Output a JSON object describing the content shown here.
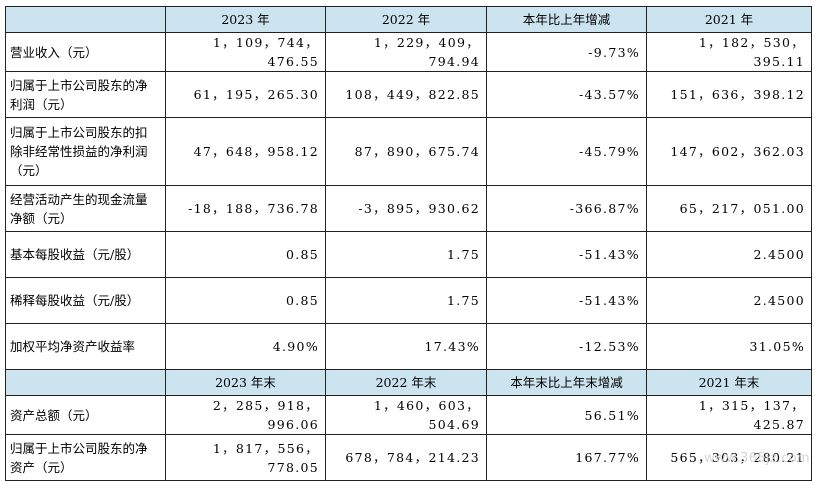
{
  "header1": [
    "",
    "2023 年",
    "2022 年",
    "本年比上年增减",
    "2021 年"
  ],
  "rows1": [
    {
      "label": "营业收入（元）",
      "values": [
        "1，109，744，476.55",
        "1，229，409，794.94",
        "-9.73%",
        "1，182，530，395.11"
      ]
    },
    {
      "label": "归属于上市公司股东的净利润（元）",
      "values": [
        "61，195，265.30",
        "108，449，822.85",
        "-43.57%",
        "151，636，398.12"
      ]
    },
    {
      "label": "归属于上市公司股东的扣除非经常性损益的净利润（元）",
      "values": [
        "47，648，958.12",
        "87，890，675.74",
        "-45.79%",
        "147，602，362.03"
      ]
    },
    {
      "label": "经营活动产生的现金流量净额（元）",
      "values": [
        "-18，188，736.78",
        "-3，895，930.62",
        "-366.87%",
        "65，217，051.00"
      ]
    },
    {
      "label": "基本每股收益（元/股）",
      "values": [
        "0.85",
        "1.75",
        "-51.43%",
        "2.4500"
      ]
    },
    {
      "label": "稀释每股收益（元/股）",
      "values": [
        "0.85",
        "1.75",
        "-51.43%",
        "2.4500"
      ]
    },
    {
      "label": "加权平均净资产收益率",
      "values": [
        "4.90%",
        "17.43%",
        "-12.53%",
        "31.05%"
      ]
    }
  ],
  "header2": [
    "",
    "2023 年末",
    "2022 年末",
    "本年末比上年末增减",
    "2021 年末"
  ],
  "rows2": [
    {
      "label": "资产总额（元）",
      "values": [
        "2，285，918，996.06",
        "1，460，603，504.69",
        "56.51%",
        "1，315，137，425.87"
      ]
    },
    {
      "label": "归属于上市公司股东的净资产（元）",
      "values": [
        "1，817，556，778.05",
        "678，784，214.23",
        "167.77%",
        "565，303，280.21"
      ]
    }
  ],
  "watermark": "www.365jz.com"
}
